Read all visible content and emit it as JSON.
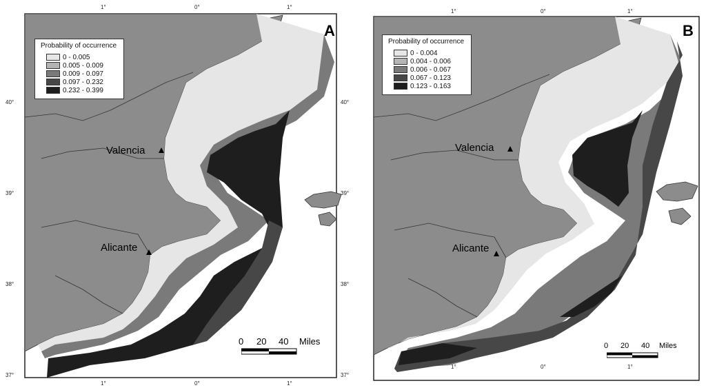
{
  "panels": [
    {
      "letter": "A",
      "legend": {
        "title": "Probability of occurrence",
        "classes": [
          {
            "range": "0 - 0.005",
            "color": "#e6e6e6"
          },
          {
            "range": "0.005 - 0.009",
            "color": "#b4b4b4"
          },
          {
            "range": "0.009 - 0.097",
            "color": "#7a7a7a"
          },
          {
            "range": "0.097 - 0.232",
            "color": "#474747"
          },
          {
            "range": "0.232 - 0.399",
            "color": "#1e1e1e"
          }
        ]
      },
      "cities": {
        "valencia": "Valencia",
        "alicante": "Alicante"
      },
      "scale": {
        "labels": [
          "0",
          "20",
          "40"
        ],
        "unit": "Miles"
      },
      "ticks": {
        "top": [
          "1°",
          "0°",
          "1°"
        ],
        "bottom": [
          "1°",
          "0°",
          "1°"
        ],
        "left": [
          "40°",
          "39°",
          "38°",
          "37°"
        ],
        "right": [
          "40°",
          "39°",
          "38°",
          "37°"
        ]
      }
    },
    {
      "letter": "B",
      "legend": {
        "title": "Probability of occurrence",
        "classes": [
          {
            "range": "0 - 0.004",
            "color": "#e6e6e6"
          },
          {
            "range": "0.004 - 0.006",
            "color": "#b4b4b4"
          },
          {
            "range": "0.006 - 0.067",
            "color": "#7a7a7a"
          },
          {
            "range": "0.067 - 0.123",
            "color": "#474747"
          },
          {
            "range": "0.123 - 0.163",
            "color": "#1e1e1e"
          }
        ]
      },
      "cities": {
        "valencia": "Valencia",
        "alicante": "Alicante"
      },
      "scale": {
        "labels": [
          "0",
          "20",
          "40"
        ],
        "unit": "Miles"
      },
      "ticks": {
        "top": [
          "1°",
          "0°",
          "1°"
        ],
        "bottom": [
          "1°",
          "0°",
          "1°"
        ]
      }
    }
  ],
  "colors": {
    "land": "#8c8c8c",
    "sea": "#ffffff",
    "border": "#333333"
  }
}
